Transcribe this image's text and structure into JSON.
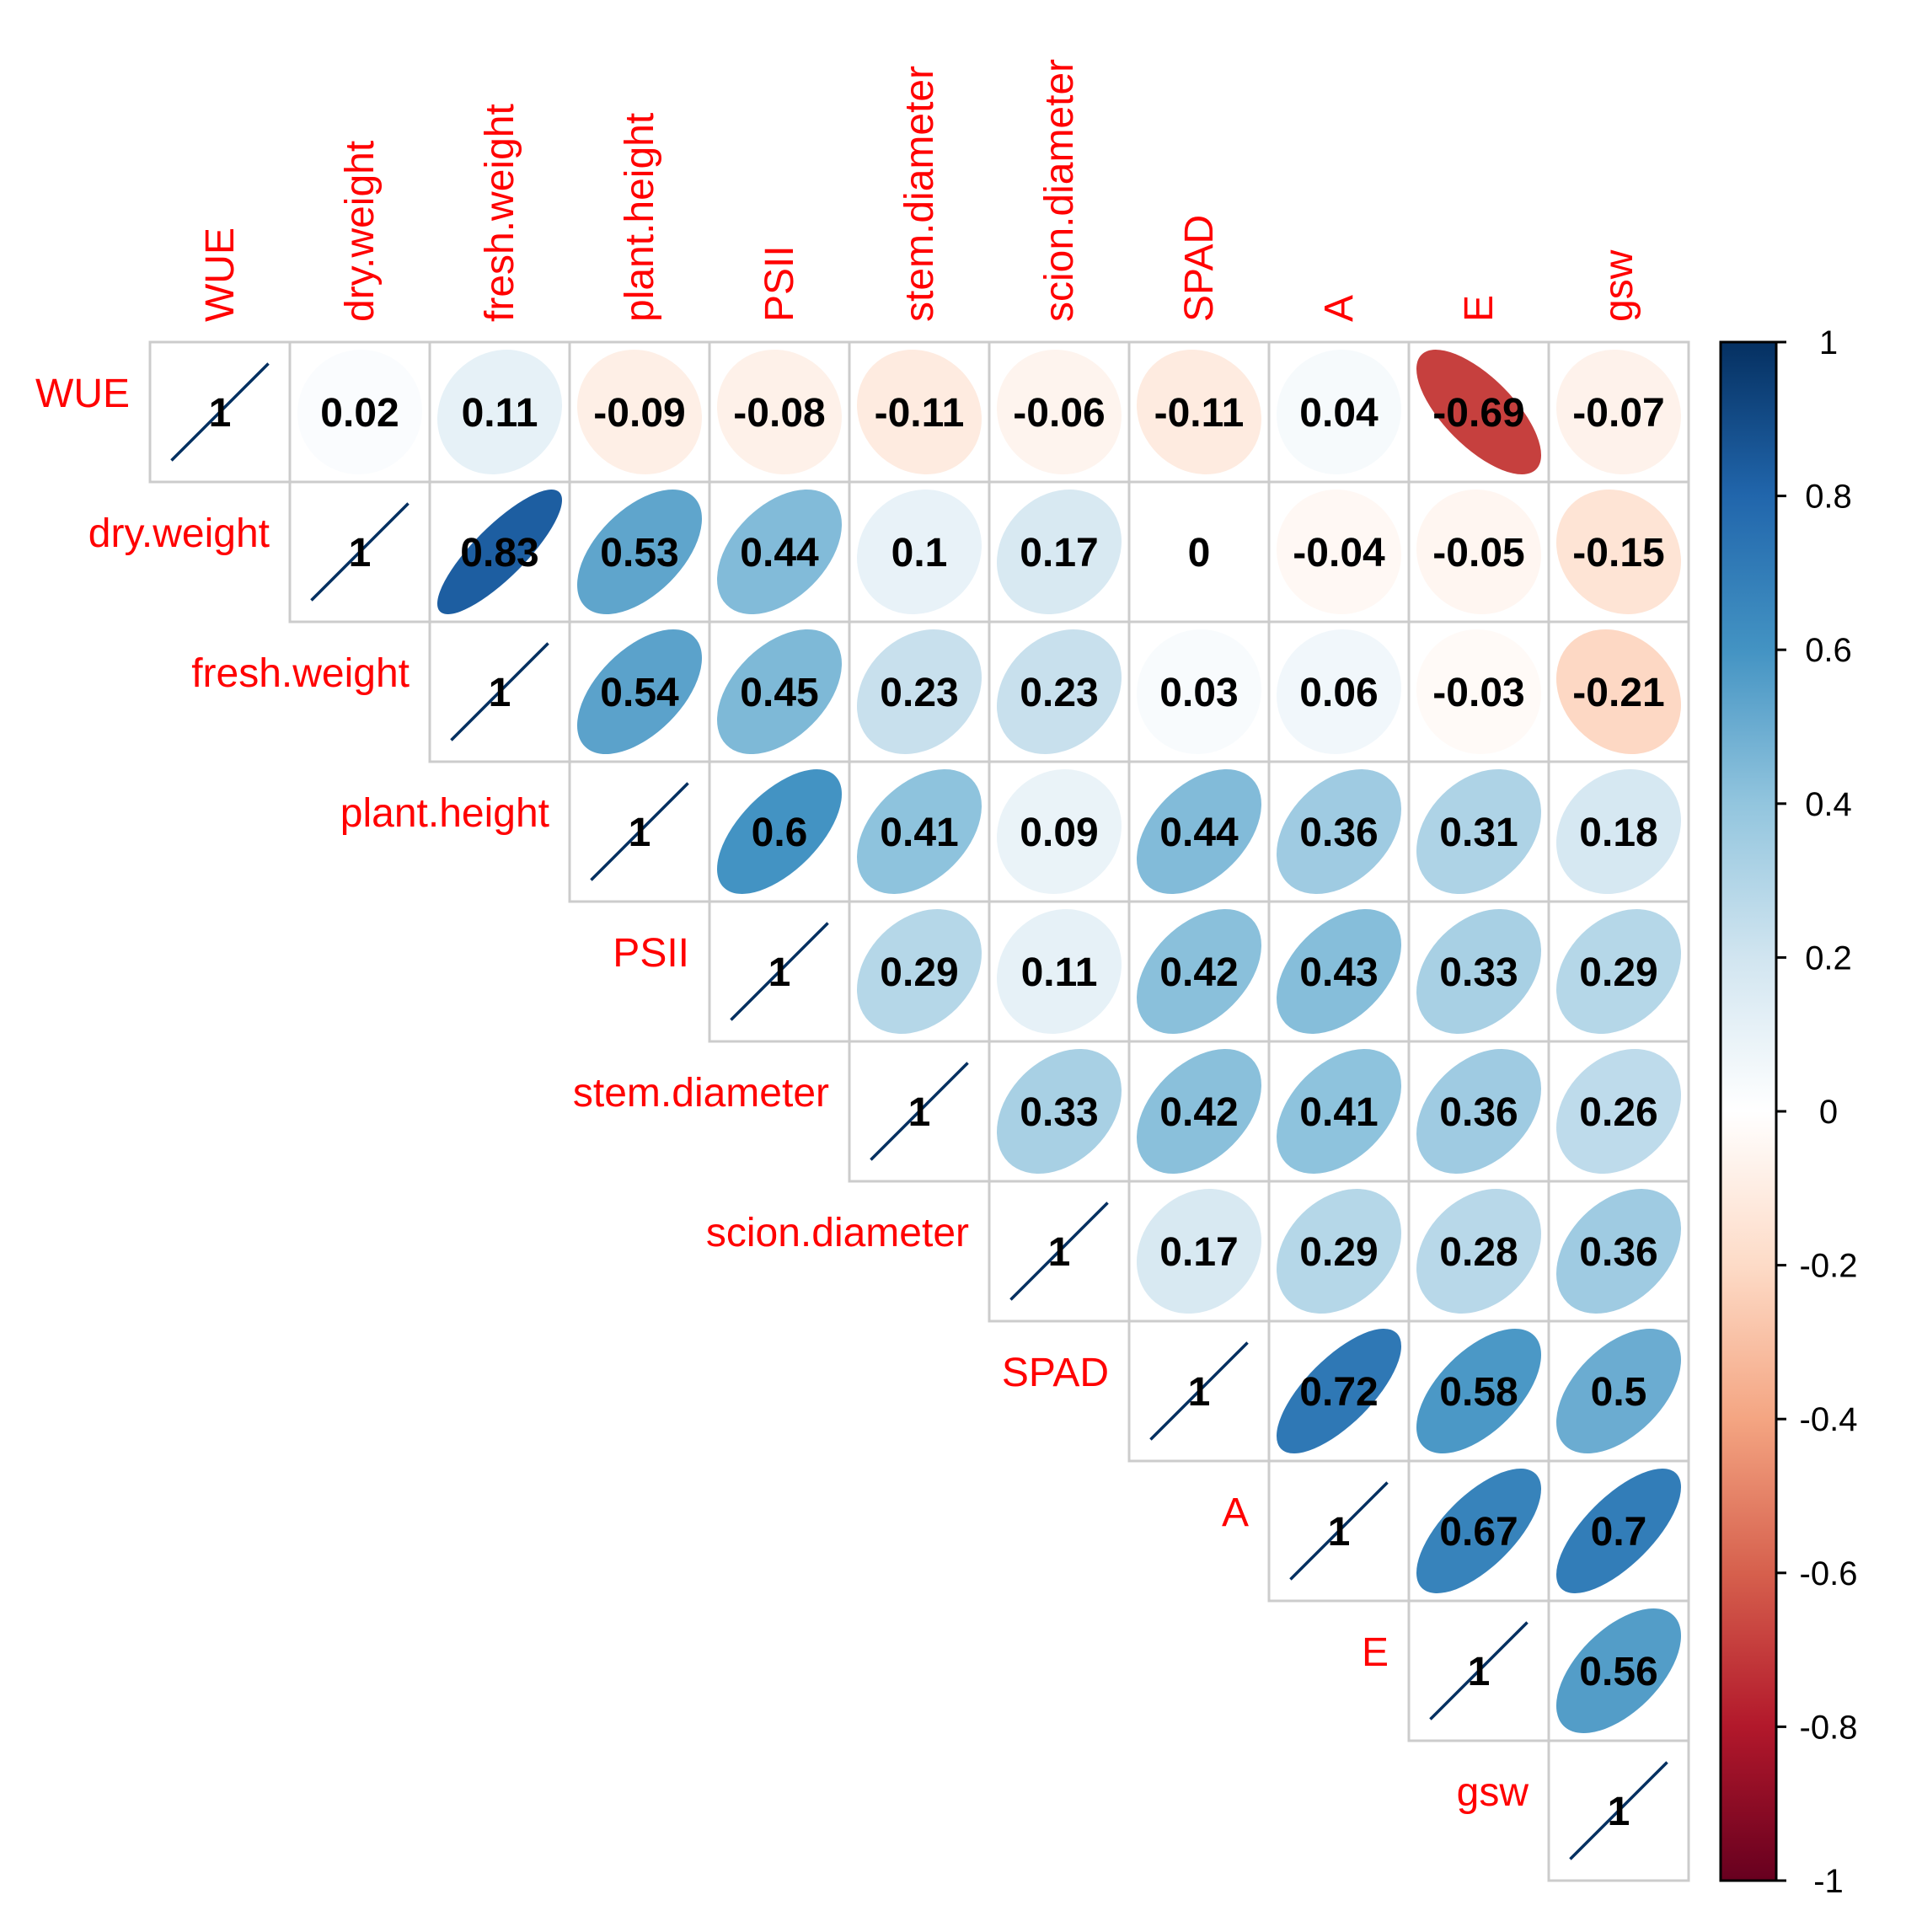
{
  "chart_data": {
    "type": "heatmap",
    "style": "ellipse correlation matrix, upper triangle",
    "variables": [
      "WUE",
      "dry.weight",
      "fresh.weight",
      "plant.height",
      "PSII",
      "stem.diameter",
      "scion.diameter",
      "SPAD",
      "A",
      "E",
      "gsw"
    ],
    "matrix": [
      [
        1,
        0.02,
        0.11,
        -0.09,
        -0.08,
        -0.11,
        -0.06,
        -0.11,
        0.04,
        -0.69,
        -0.07
      ],
      [
        0.02,
        1,
        0.83,
        0.53,
        0.44,
        0.1,
        0.17,
        0,
        -0.04,
        -0.05,
        -0.15
      ],
      [
        0.11,
        0.83,
        1,
        0.54,
        0.45,
        0.23,
        0.23,
        0.03,
        0.06,
        -0.03,
        -0.21
      ],
      [
        -0.09,
        0.53,
        0.54,
        1,
        0.6,
        0.41,
        0.09,
        0.44,
        0.36,
        0.31,
        0.18
      ],
      [
        -0.08,
        0.44,
        0.45,
        0.6,
        1,
        0.29,
        0.11,
        0.42,
        0.43,
        0.33,
        0.29
      ],
      [
        -0.11,
        0.1,
        0.23,
        0.41,
        0.29,
        1,
        0.33,
        0.42,
        0.41,
        0.36,
        0.26
      ],
      [
        -0.06,
        0.17,
        0.23,
        0.09,
        0.11,
        0.33,
        1,
        0.17,
        0.29,
        0.28,
        0.36
      ],
      [
        -0.11,
        0,
        0.03,
        0.44,
        0.42,
        0.42,
        0.17,
        1,
        0.72,
        0.58,
        0.5
      ],
      [
        0.04,
        -0.04,
        0.06,
        0.36,
        0.43,
        0.41,
        0.29,
        0.72,
        1,
        0.67,
        0.7
      ],
      [
        -0.69,
        -0.05,
        -0.03,
        0.31,
        0.33,
        0.36,
        0.28,
        0.58,
        0.67,
        1,
        0.56
      ],
      [
        -0.07,
        -0.15,
        -0.21,
        0.18,
        0.29,
        0.26,
        0.36,
        0.5,
        0.7,
        0.56,
        1
      ]
    ],
    "colorbar": {
      "range": [
        -1,
        1
      ],
      "ticks": [
        "1",
        "0.8",
        "0.6",
        "0.4",
        "0.2",
        "0",
        "-0.2",
        "-0.4",
        "-0.6",
        "-0.8",
        "-1"
      ],
      "colors": {
        "positive_end": "#053061",
        "negative_end": "#67001f",
        "mid": "#ffffff"
      }
    },
    "label_color": "#ff0000",
    "grid_color": "#cccccc"
  }
}
